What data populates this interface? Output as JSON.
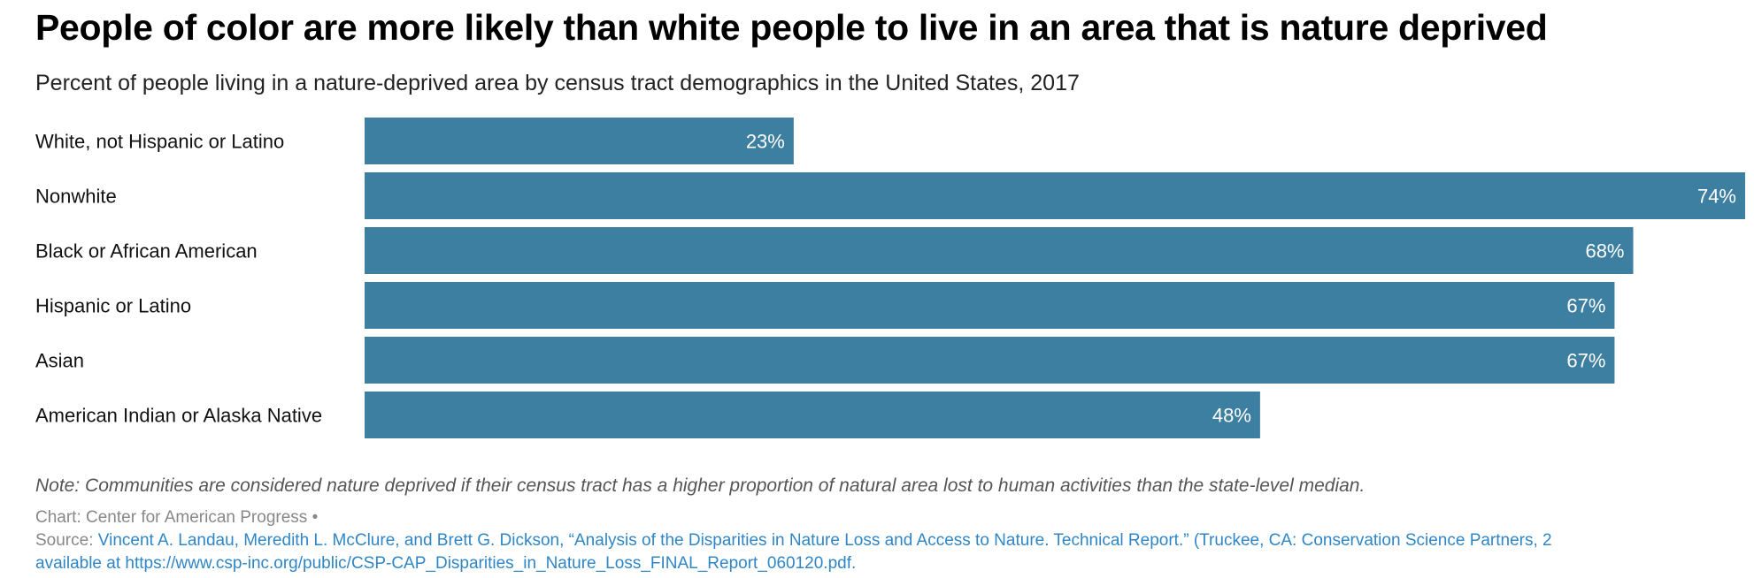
{
  "chart_data": {
    "type": "bar",
    "orientation": "horizontal",
    "title": "People of color are more likely than white people to live in an area that is nature deprived",
    "subtitle": "Percent of people living in a nature-deprived area by census tract demographics in the United States, 2017",
    "categories": [
      "White, not Hispanic or Latino",
      "Nonwhite",
      "Black or African American",
      "Hispanic or Latino",
      "Asian",
      "American Indian or Alaska Native"
    ],
    "values": [
      23,
      74,
      68,
      67,
      67,
      48
    ],
    "data_labels": [
      "23%",
      "74%",
      "68%",
      "67%",
      "67%",
      "48%"
    ],
    "xlim": [
      0,
      74
    ],
    "grid": false,
    "bar_color": "#3d7fa0"
  },
  "note": "Note: Communities are considered nature deprived if their census tract has a higher proportion of natural area lost to human activities than the state-level median.",
  "credit": {
    "chart_label": "Chart: Center for American Progress •",
    "source_label": "Source: ",
    "source_text": "Vincent A. Landau, Meredith L. McClure, and Brett G. Dickson, “Analysis of the Disparities in Nature Loss and Access to Nature. Technical Report.” (Truckee, CA: Conservation Science Partners, 2",
    "source_text_2": "available at https://www.csp-inc.org/public/CSP-CAP_Disparities_in_Nature_Loss_FINAL_Report_060120.pdf."
  }
}
